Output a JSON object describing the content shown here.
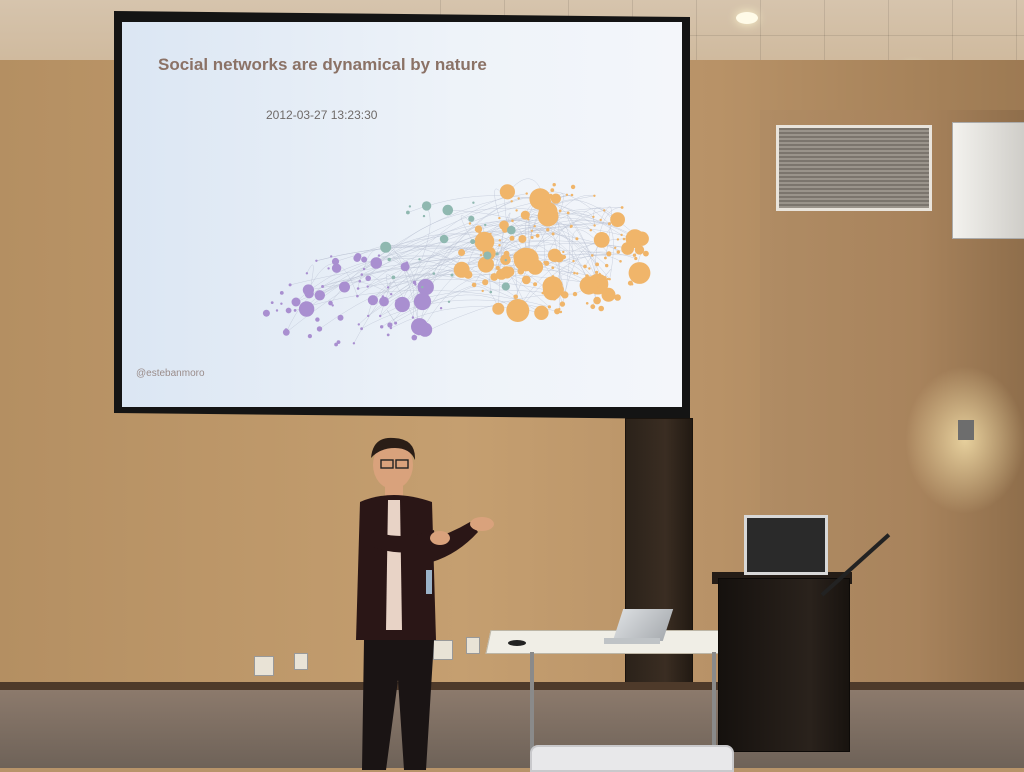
{
  "slide": {
    "title": "Social networks are dynamical by nature",
    "timestamp": "2012-03-27 13:23:30",
    "handle": "@estebanmoro"
  },
  "colors": {
    "cluster_orange": "#f0b56a",
    "cluster_purple": "#a98fd0",
    "cluster_teal": "#8fb8b0",
    "edge": "#b9c0d2",
    "screen_bg": "#eef3f9"
  }
}
